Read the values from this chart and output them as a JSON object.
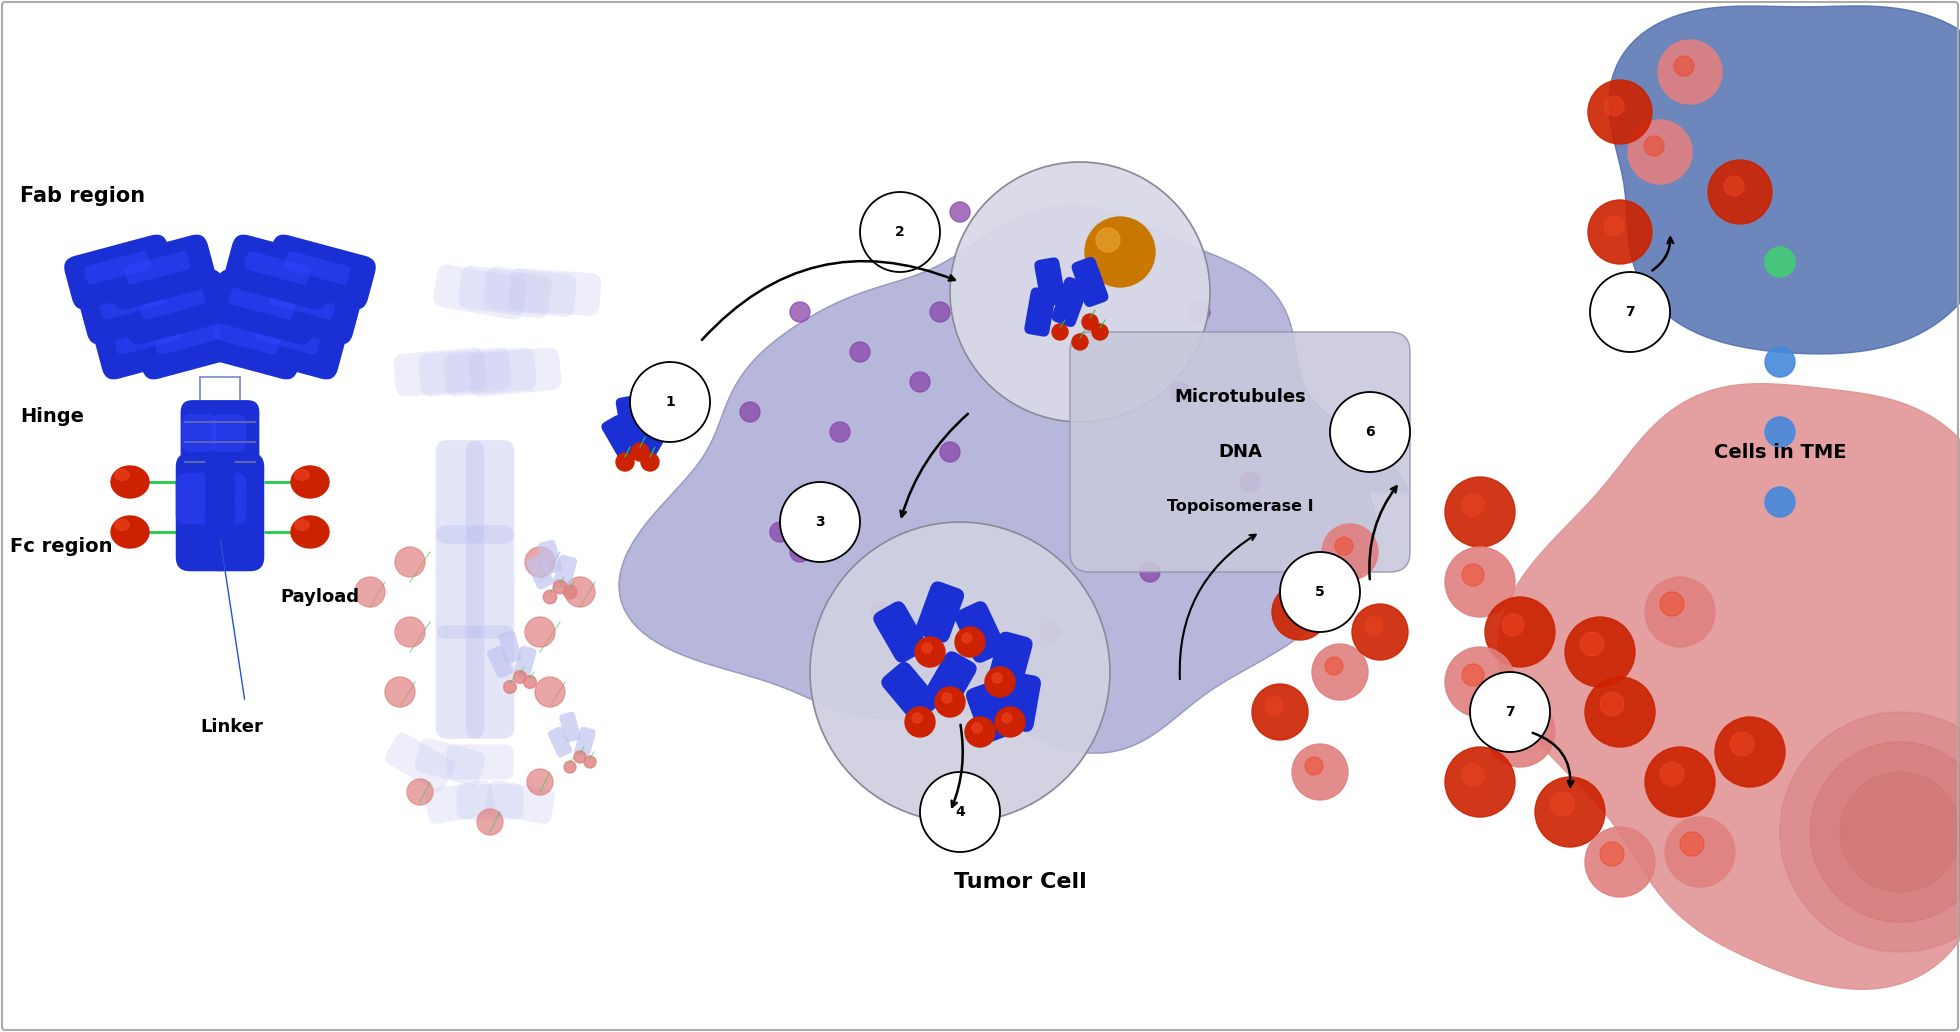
{
  "background_color": "#ffffff",
  "antibody_blue": "#1a2fd4",
  "antibody_light_blue": "#aab0e8",
  "antibody_ghost_blue": "#c0c4f0",
  "linker_color": "#22cc44",
  "payload_color": "#cc2200",
  "gold_color": "#c87800",
  "gold_highlight": "#e8a030",
  "tumor_cell_color": "#b0b0d8",
  "tumor_cell_border": "#9090b8",
  "vesicle_color": "#d0d0e0",
  "vesicle_border": "#808090",
  "nucleus_box_color": "#c8c8dc",
  "nucleus_box_border": "#9090a8",
  "pink_cell_color": "#e09090",
  "pink_cell_dark": "#d07070",
  "blue_cell_color": "#4466aa",
  "dot_purple": "#8844aa",
  "dot_red_bright": "#cc2200",
  "dot_red_light": "#e08080",
  "dot_blue": "#4488dd",
  "dot_green": "#44cc77",
  "fab_label": "Fab region",
  "hinge_label": "Hinge",
  "fc_label": "Fc region",
  "payload_label": "Payload",
  "linker_label": "Linker",
  "tumor_cell_label": "Tumor Cell",
  "cells_in_tme_label": "Cells in TME",
  "microtubules_label": "Microtubules",
  "dna_label": "DNA",
  "topoisomerase_label": "Topoisomerase I"
}
